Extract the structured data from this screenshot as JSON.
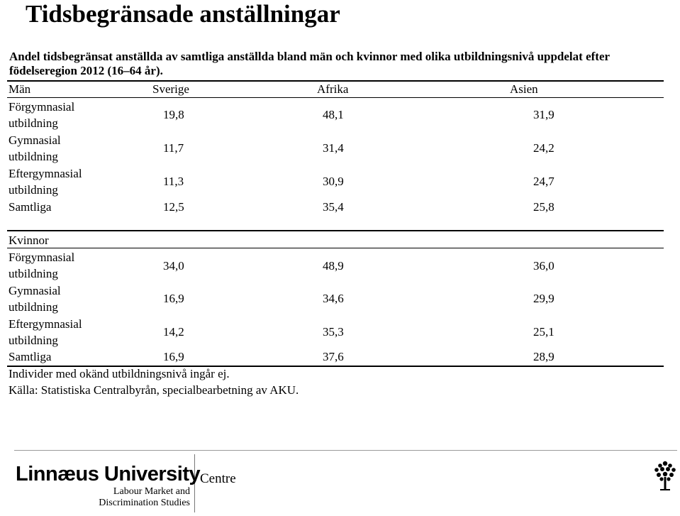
{
  "title": "Tidsbegränsade anställningar",
  "subtitle": "Andel tidsbegränsat anställda av samtliga anställda bland män och kvinnor med olika utbildningsnivå uppdelat efter födelseregion 2012 (16–64 år).",
  "table": {
    "columns": [
      "Sverige",
      "Afrika",
      "Asien"
    ],
    "men": {
      "header": "Män",
      "rows": [
        {
          "label_line1": "Förgymnasial",
          "label_line2": "utbildning",
          "values": [
            "19,8",
            "48,1",
            "31,9"
          ]
        },
        {
          "label_line1": "Gymnasial",
          "label_line2": "utbildning",
          "values": [
            "11,7",
            "31,4",
            "24,2"
          ]
        },
        {
          "label_line1": "Eftergymnasial",
          "label_line2": "utbildning",
          "values": [
            "11,3",
            "30,9",
            "24,7"
          ]
        }
      ],
      "total": {
        "label": "Samtliga",
        "values": [
          "12,5",
          "35,4",
          "25,8"
        ]
      }
    },
    "women": {
      "header": "Kvinnor",
      "rows": [
        {
          "label_line1": "Förgymnasial",
          "label_line2": "utbildning",
          "values": [
            "34,0",
            "48,9",
            "36,0"
          ]
        },
        {
          "label_line1": "Gymnasial",
          "label_line2": "utbildning",
          "values": [
            "16,9",
            "34,6",
            "29,9"
          ]
        },
        {
          "label_line1": "Eftergymnasial",
          "label_line2": "utbildning",
          "values": [
            "14,2",
            "35,3",
            "25,1"
          ]
        }
      ],
      "total": {
        "label": "Samtliga",
        "values": [
          "16,9",
          "37,6",
          "28,9"
        ]
      }
    }
  },
  "notes": [
    "Individer med okänd utbildningsnivå ingår ej.",
    "Källa: Statistiska Centralbyrån, specialbearbetning av AKU."
  ],
  "footer": {
    "university": "Linnæus University",
    "centre": "Centre",
    "unit_line1": "Labour Market and",
    "unit_line2": "Discrimination Studies",
    "logo_icon": "tree-icon"
  }
}
